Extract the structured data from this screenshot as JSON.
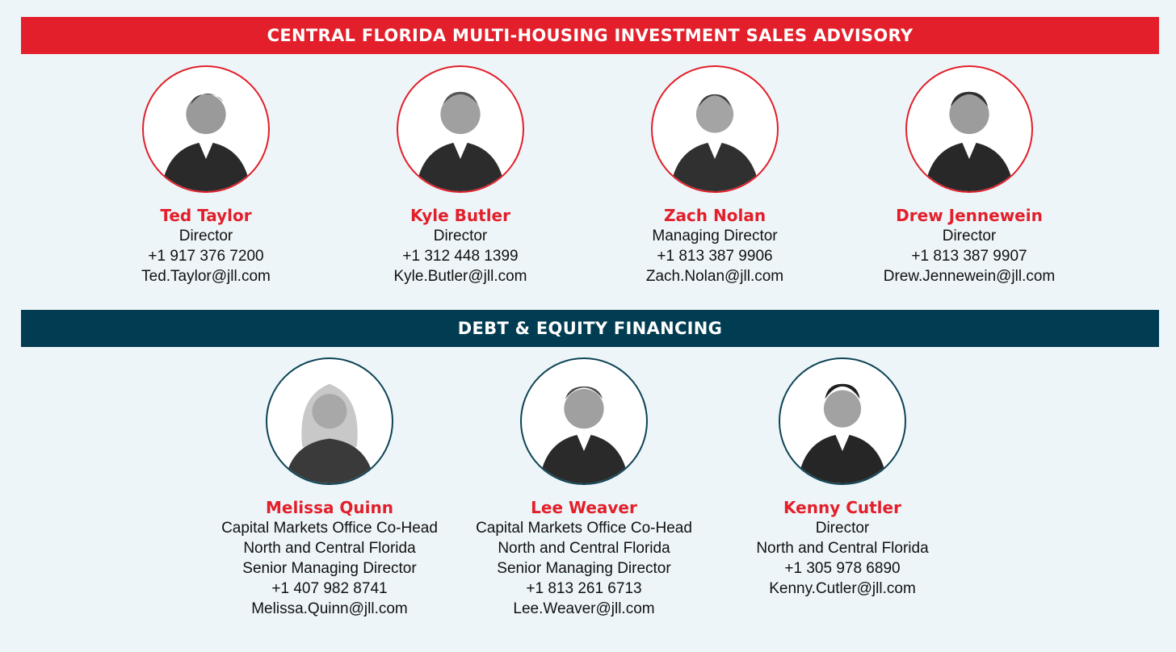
{
  "sections": {
    "sales": {
      "title": "CENTRAL FLORIDA MULTI-HOUSING INVESTMENT SALES ADVISORY",
      "color": "#e21f2a"
    },
    "financing": {
      "title": "DEBT & EQUITY FINANCING",
      "color": "#003c52"
    }
  },
  "sales_team": [
    {
      "name": "Ted Taylor",
      "lines": [
        "Director",
        "+1 917 376 7200",
        "Ted.Taylor@jll.com"
      ]
    },
    {
      "name": "Kyle Butler",
      "lines": [
        "Director",
        "+1 312 448 1399",
        "Kyle.Butler@jll.com"
      ]
    },
    {
      "name": "Zach Nolan",
      "lines": [
        "Managing Director",
        "+1 813 387 9906",
        "Zach.Nolan@jll.com"
      ]
    },
    {
      "name": "Drew Jennewein",
      "lines": [
        "Director",
        "+1 813 387 9907",
        "Drew.Jennewein@jll.com"
      ]
    }
  ],
  "financing_team": [
    {
      "name": "Melissa Quinn",
      "lines": [
        "Capital Markets Office Co-Head",
        "North and Central Florida",
        "Senior Managing Director",
        "+1 407 982 8741",
        "Melissa.Quinn@jll.com"
      ]
    },
    {
      "name": "Lee Weaver",
      "lines": [
        "Capital Markets Office Co-Head",
        "North and Central Florida",
        "Senior Managing Director",
        "+1 813 261 6713",
        "Lee.Weaver@jll.com"
      ]
    },
    {
      "name": "Kenny Cutler",
      "lines": [
        "Director",
        "North and Central Florida",
        "+1 305 978 6890",
        "Kenny.Cutler@jll.com"
      ]
    }
  ],
  "icons": {
    "portrait": "person-photo-icon"
  }
}
